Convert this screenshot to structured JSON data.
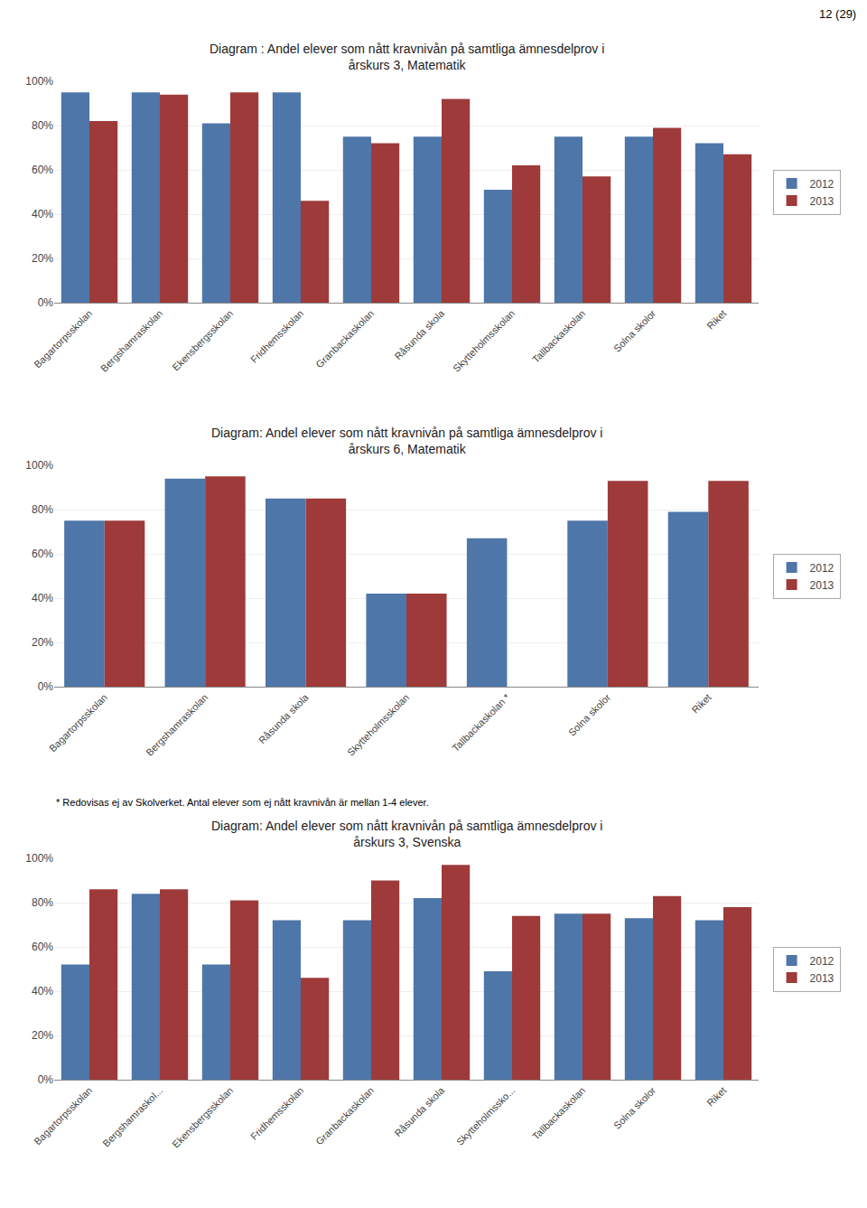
{
  "chart_data": [
    {
      "type": "bar",
      "title": "Diagram : Andel elever som nått kravnivån på samtliga ämnesdelprov i\nårskurs 3, Matematik",
      "annotations": [
        "12 (29)"
      ],
      "categories": [
        "Bagartorpsskolan",
        "Bergshamraskolan",
        "Ekensbergsskolan",
        "Fridhemsskolan",
        "Granbackaskolan",
        "Råsunda skola",
        "Skytteholmsskolan",
        "Tallbackaskolan",
        "Solna skolor",
        "Riket"
      ],
      "series": [
        {
          "name": "2012",
          "color": "#4e76a8",
          "values": [
            0.95,
            0.95,
            0.81,
            0.95,
            0.75,
            0.75,
            0.51,
            0.75,
            0.75,
            0.72
          ]
        },
        {
          "name": "2013",
          "color": "#9e3a3a",
          "values": [
            0.82,
            0.94,
            0.95,
            0.46,
            0.72,
            0.92,
            0.62,
            0.57,
            0.79,
            0.67
          ]
        }
      ],
      "ylim": [
        0.0,
        1.0
      ],
      "yticks": [
        {
          "value": 0.0,
          "label": "0%"
        },
        {
          "value": 0.2,
          "label": "20%"
        },
        {
          "value": 0.4,
          "label": "40%"
        },
        {
          "value": 0.6,
          "label": "60%"
        },
        {
          "value": 0.8,
          "label": "80%"
        },
        {
          "value": 1.0,
          "label": "100%"
        }
      ],
      "grid": true,
      "legend": "right"
    },
    {
      "type": "bar",
      "title": "Diagram: Andel elever som nått kravnivån på samtliga ämnesdelprov i\nårskurs 6, Matematik",
      "annotations": [
        "* Redovisas ej av Skolverket. Antal elever som ej nått kravnivån är mellan 1-4 elever."
      ],
      "categories": [
        "Bagartorpsskolan",
        "Bergshamraskolan",
        "Råsunda skola",
        "Skytteholmsskolan",
        "Tallbackaskolan *",
        "Solna skolor",
        "Riket"
      ],
      "series": [
        {
          "name": "2012",
          "color": "#4e76a8",
          "values": [
            0.75,
            0.94,
            0.85,
            0.42,
            0.67,
            0.75,
            0.79
          ]
        },
        {
          "name": "2013",
          "color": "#9e3a3a",
          "values": [
            0.75,
            0.95,
            0.85,
            0.42,
            null,
            0.93,
            0.93
          ]
        }
      ],
      "ylim": [
        0.0,
        1.0
      ],
      "yticks": [
        {
          "value": 0.0,
          "label": "0%"
        },
        {
          "value": 0.2,
          "label": "20%"
        },
        {
          "value": 0.4,
          "label": "40%"
        },
        {
          "value": 0.6,
          "label": "60%"
        },
        {
          "value": 0.8,
          "label": "80%"
        },
        {
          "value": 1.0,
          "label": "100%"
        }
      ],
      "grid": true,
      "legend": "right"
    },
    {
      "type": "bar",
      "title": "Diagram: Andel elever som nått kravnivån på samtliga ämnesdelprov i\nårskurs 3, Svenska",
      "categories": [
        "Bagartorpsskolan",
        "Bergshamraskol...",
        "Ekensbergsskolan",
        "Fridhemsskolan",
        "Granbackaskolan",
        "Råsunda skola",
        "Skytteholmssko...",
        "Tallbackaskolan",
        "Solna skolor",
        "Riket"
      ],
      "series": [
        {
          "name": "2012",
          "color": "#4e76a8",
          "values": [
            0.52,
            0.84,
            0.52,
            0.72,
            0.72,
            0.82,
            0.49,
            0.75,
            0.73,
            0.72
          ]
        },
        {
          "name": "2013",
          "color": "#9e3a3a",
          "values": [
            0.86,
            0.86,
            0.81,
            0.46,
            0.9,
            0.97,
            0.74,
            0.75,
            0.83,
            0.78
          ]
        }
      ],
      "ylim": [
        0.0,
        1.0
      ],
      "yticks": [
        {
          "value": 0.0,
          "label": "0%"
        },
        {
          "value": 0.2,
          "label": "20%"
        },
        {
          "value": 0.4,
          "label": "40%"
        },
        {
          "value": 0.6,
          "label": "60%"
        },
        {
          "value": 0.8,
          "label": "80%"
        },
        {
          "value": 1.0,
          "label": "100%"
        }
      ],
      "grid": true,
      "legend": "right"
    }
  ]
}
